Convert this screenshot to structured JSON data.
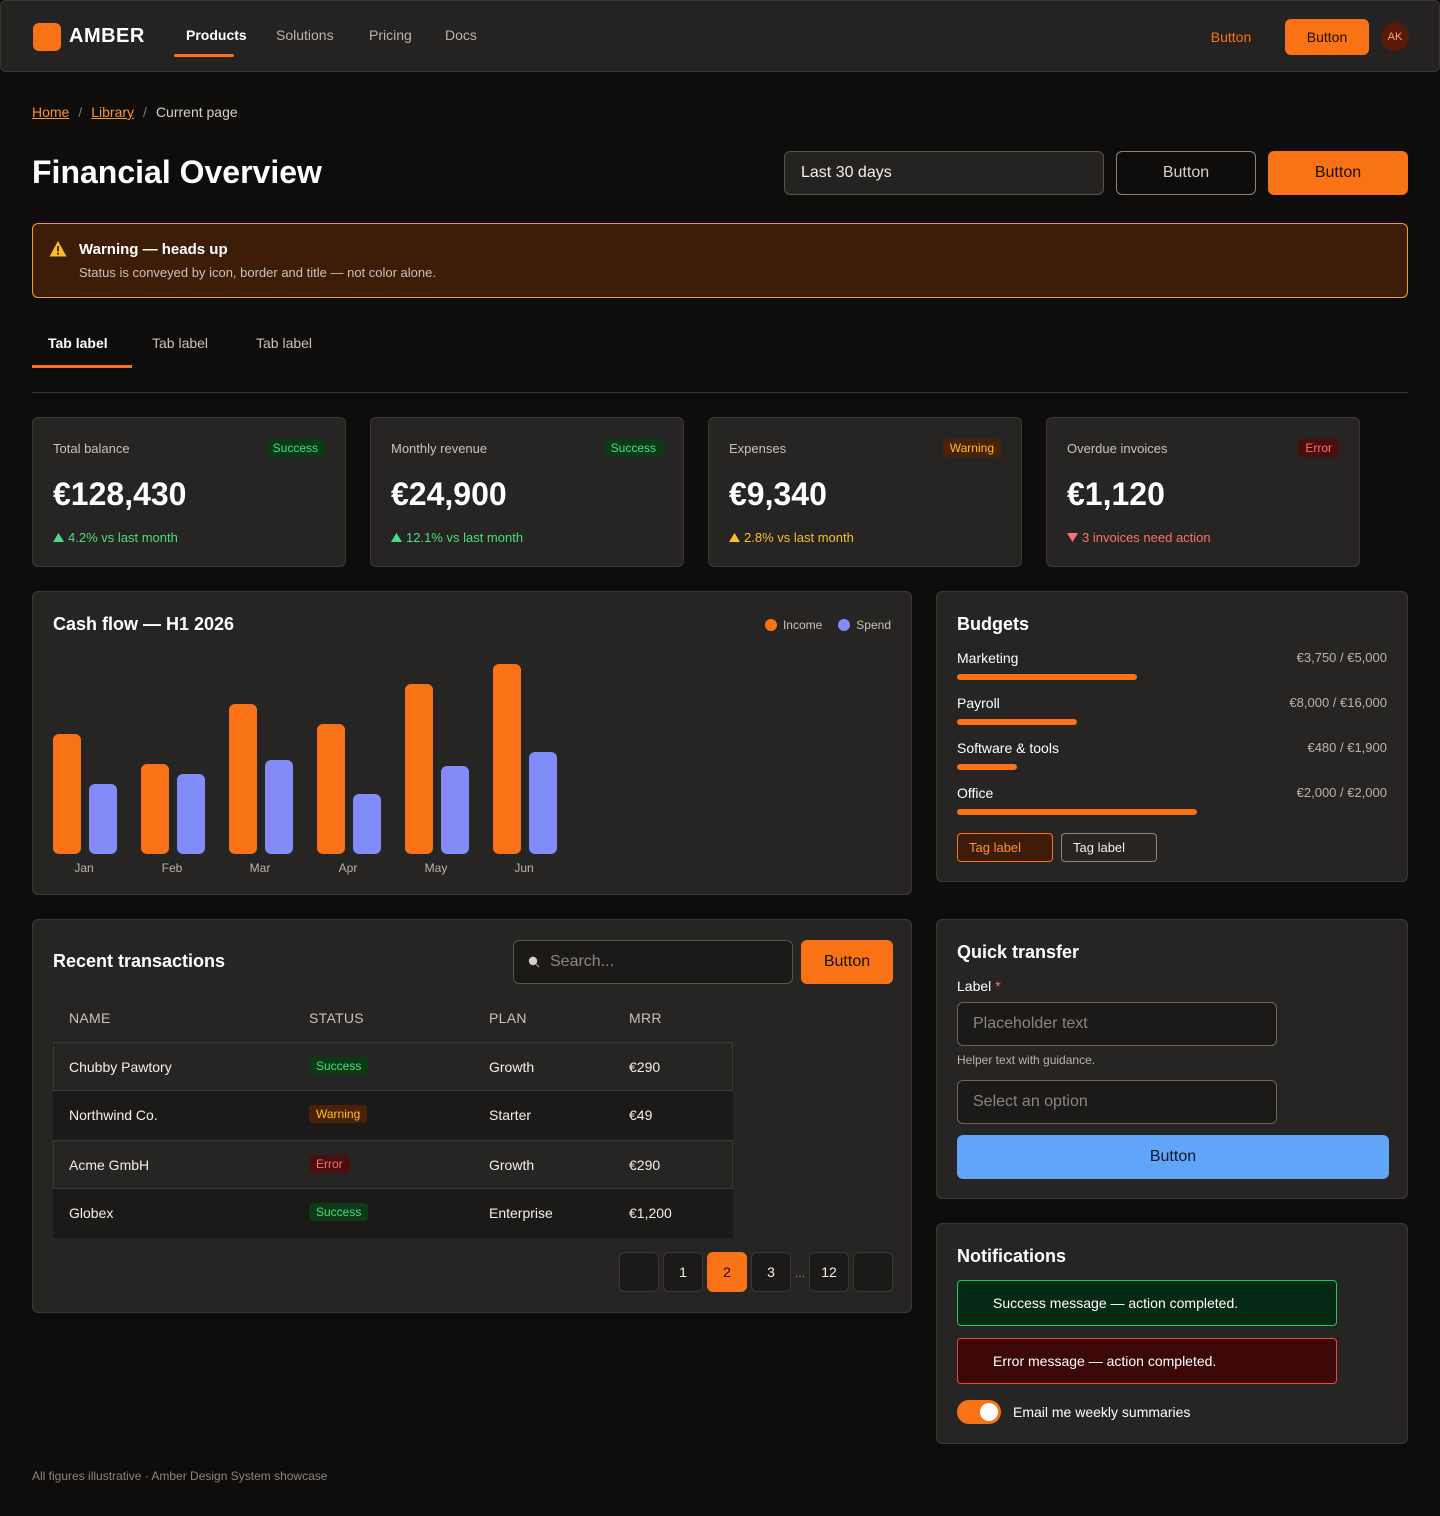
{
  "brand": {
    "name": "AMBER",
    "accent": "#f97316"
  },
  "nav": {
    "links": [
      "Products",
      "Solutions",
      "Pricing",
      "Docs"
    ],
    "active": "Products",
    "ghost_button": "Button",
    "primary_button": "Button",
    "avatar_initials": "AK"
  },
  "breadcrumb": {
    "home": "Home",
    "library": "Library",
    "current": "Current page",
    "separator": "/"
  },
  "header": {
    "title": "Financial Overview",
    "date_range": "Last 30 days",
    "outline_button": "Button",
    "primary_button": "Button"
  },
  "banner": {
    "icon": "warning-triangle-icon",
    "title": "Warning — heads up",
    "text": "Status is conveyed by icon, border and title — not color alone."
  },
  "tabs": [
    "Tab label",
    "Tab label",
    "Tab label"
  ],
  "kpis": [
    {
      "label": "Total balance",
      "badge": "Success",
      "status": "success",
      "value": "€128,430",
      "delta": "4.2% vs last month",
      "trend": "up"
    },
    {
      "label": "Monthly revenue",
      "badge": "Success",
      "status": "success",
      "value": "€24,900",
      "delta": "12.1% vs last month",
      "trend": "up"
    },
    {
      "label": "Expenses",
      "badge": "Warning",
      "status": "warning",
      "value": "€9,340",
      "delta": "2.8% vs last month",
      "trend": "up"
    },
    {
      "label": "Overdue invoices",
      "badge": "Error",
      "status": "error",
      "value": "€1,120",
      "delta": "3 invoices need action",
      "trend": "down"
    }
  ],
  "chart_data": {
    "type": "bar",
    "title": "Cash flow — H1 2026",
    "categories": [
      "Jan",
      "Feb",
      "Mar",
      "Apr",
      "May",
      "Jun"
    ],
    "series": [
      {
        "name": "Income",
        "color": "#f97316",
        "values": [
          60,
          45,
          75,
          65,
          85,
          95
        ]
      },
      {
        "name": "Spend",
        "color": "#818cf8",
        "values": [
          35,
          40,
          47,
          30,
          44,
          51
        ]
      }
    ],
    "ylim": [
      0,
      100
    ],
    "legend": "top-right",
    "grid": false
  },
  "budgets": {
    "title": "Budgets",
    "items": [
      {
        "label": "Marketing",
        "value": "€3,750 / €5,000",
        "fraction": 0.75
      },
      {
        "label": "Payroll",
        "value": "€8,000 / €16,000",
        "fraction": 0.5
      },
      {
        "label": "Software & tools",
        "value": "€480 / €1,900",
        "fraction": 0.25
      },
      {
        "label": "Office",
        "value": "€2,000 / €2,000",
        "fraction": 1.0
      }
    ],
    "tags": [
      "Tag label",
      "Tag label"
    ]
  },
  "transactions": {
    "title": "Recent transactions",
    "search_placeholder": "Search...",
    "button": "Button",
    "columns": [
      "NAME",
      "STATUS",
      "PLAN",
      "MRR"
    ],
    "rows": [
      {
        "name": "Chubby Pawtory",
        "status": "Success",
        "status_type": "success",
        "plan": "Growth",
        "mrr": "€290"
      },
      {
        "name": "Northwind Co.",
        "status": "Warning",
        "status_type": "warning",
        "plan": "Starter",
        "mrr": "€49"
      },
      {
        "name": "Acme GmbH",
        "status": "Error",
        "status_type": "error",
        "plan": "Growth",
        "mrr": "€290"
      },
      {
        "name": "Globex",
        "status": "Success",
        "status_type": "success",
        "plan": "Enterprise",
        "mrr": "€1,200"
      }
    ],
    "pagination": {
      "pages": [
        "1",
        "2",
        "3",
        "12"
      ],
      "current": "2",
      "ellipsis": "..."
    }
  },
  "quick_transfer": {
    "title": "Quick transfer",
    "label": "Label",
    "required_mark": "*",
    "placeholder": "Placeholder text",
    "helper": "Helper text with guidance.",
    "select_placeholder": "Select an option",
    "button": "Button"
  },
  "notifications": {
    "title": "Notifications",
    "success": "Success message — action completed.",
    "error": "Error message — action completed.",
    "toggle_label": "Email me weekly summaries",
    "toggle_on": true
  },
  "footer": "All figures illustrative · Amber Design System showcase"
}
